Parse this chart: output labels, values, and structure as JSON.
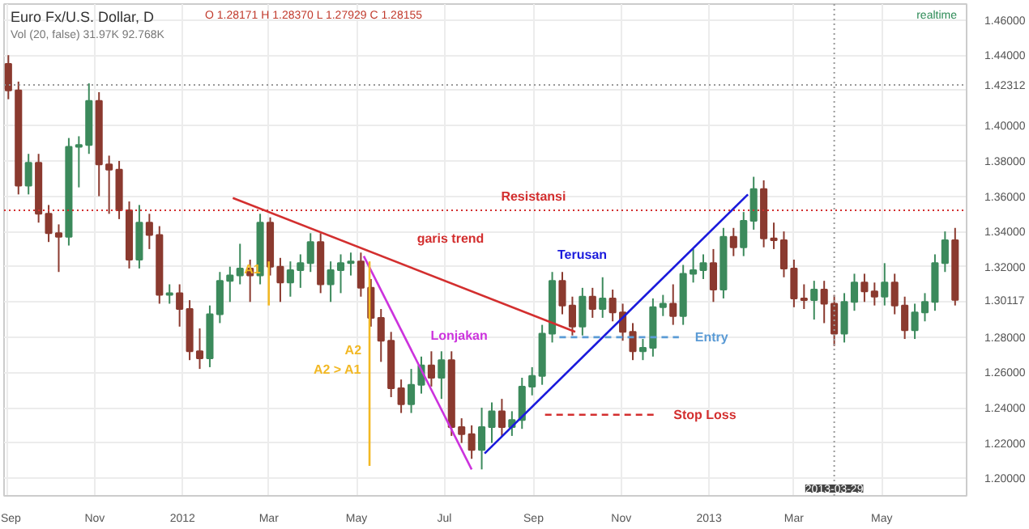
{
  "chart_data": {
    "type": "candlestick",
    "title": "Euro Fx/U.S. Dollar, D",
    "x": [
      "2011-09-02",
      "2011-09-09",
      "2011-09-16",
      "2011-09-23",
      "2011-09-30",
      "2011-10-07",
      "2011-10-14",
      "2011-10-21",
      "2011-10-28",
      "2011-11-04",
      "2011-11-11",
      "2011-11-18",
      "2011-11-25",
      "2011-12-02",
      "2011-12-09",
      "2011-12-16",
      "2011-12-23",
      "2011-12-30",
      "2012-01-06",
      "2012-01-13",
      "2012-01-20",
      "2012-01-27",
      "2012-02-03",
      "2012-02-10",
      "2012-02-17",
      "2012-02-24",
      "2012-03-02",
      "2012-03-09",
      "2012-03-16",
      "2012-03-23",
      "2012-03-30",
      "2012-04-06",
      "2012-04-13",
      "2012-04-20",
      "2012-04-27",
      "2012-05-04",
      "2012-05-11",
      "2012-05-18",
      "2012-05-25",
      "2012-06-01",
      "2012-06-08",
      "2012-06-15",
      "2012-06-22",
      "2012-06-29",
      "2012-07-06",
      "2012-07-13",
      "2012-07-20",
      "2012-07-27",
      "2012-08-03",
      "2012-08-10",
      "2012-08-17",
      "2012-08-24",
      "2012-08-31",
      "2012-09-07",
      "2012-09-14",
      "2012-09-21",
      "2012-09-28",
      "2012-10-05",
      "2012-10-12",
      "2012-10-19",
      "2012-10-26",
      "2012-11-02",
      "2012-11-09",
      "2012-11-16",
      "2012-11-23",
      "2012-11-30",
      "2012-12-07",
      "2012-12-14",
      "2012-12-21",
      "2012-12-28",
      "2013-01-04",
      "2013-01-11",
      "2013-01-18",
      "2013-01-25",
      "2013-02-01",
      "2013-02-08",
      "2013-02-15",
      "2013-02-22",
      "2013-03-01",
      "2013-03-08",
      "2013-03-15",
      "2013-03-22",
      "2013-03-29",
      "2013-04-05",
      "2013-04-12",
      "2013-04-19",
      "2013-04-26",
      "2013-05-03",
      "2013-05-10",
      "2013-05-17",
      "2013-05-24",
      "2013-05-31",
      "2013-06-07",
      "2013-06-14",
      "2013-06-21"
    ],
    "ohlc": [
      [
        1.435,
        1.44,
        1.415,
        1.42
      ],
      [
        1.42,
        1.425,
        1.361,
        1.366
      ],
      [
        1.366,
        1.384,
        1.361,
        1.379
      ],
      [
        1.379,
        1.384,
        1.345,
        1.35
      ],
      [
        1.35,
        1.355,
        1.334,
        1.339
      ],
      [
        1.339,
        1.344,
        1.317,
        1.337
      ],
      [
        1.337,
        1.393,
        1.332,
        1.388
      ],
      [
        1.388,
        1.394,
        1.365,
        1.389
      ],
      [
        1.389,
        1.424,
        1.384,
        1.414
      ],
      [
        1.414,
        1.419,
        1.36,
        1.378
      ],
      [
        1.378,
        1.383,
        1.35,
        1.375
      ],
      [
        1.375,
        1.38,
        1.347,
        1.352
      ],
      [
        1.352,
        1.357,
        1.319,
        1.324
      ],
      [
        1.324,
        1.355,
        1.319,
        1.345
      ],
      [
        1.345,
        1.35,
        1.33,
        1.338
      ],
      [
        1.338,
        1.343,
        1.299,
        1.304
      ],
      [
        1.304,
        1.31,
        1.299,
        1.305
      ],
      [
        1.305,
        1.31,
        1.286,
        1.296
      ],
      [
        1.296,
        1.301,
        1.267,
        1.272
      ],
      [
        1.272,
        1.285,
        1.262,
        1.268
      ],
      [
        1.268,
        1.298,
        1.263,
        1.293
      ],
      [
        1.293,
        1.317,
        1.288,
        1.312
      ],
      [
        1.312,
        1.32,
        1.3,
        1.315
      ],
      [
        1.315,
        1.333,
        1.31,
        1.319
      ],
      [
        1.319,
        1.324,
        1.3,
        1.315
      ],
      [
        1.315,
        1.35,
        1.31,
        1.345
      ],
      [
        1.345,
        1.348,
        1.315,
        1.32
      ],
      [
        1.32,
        1.325,
        1.3,
        1.311
      ],
      [
        1.311,
        1.323,
        1.303,
        1.318
      ],
      [
        1.318,
        1.327,
        1.308,
        1.322
      ],
      [
        1.322,
        1.339,
        1.317,
        1.334
      ],
      [
        1.334,
        1.339,
        1.305,
        1.31
      ],
      [
        1.31,
        1.323,
        1.3,
        1.318
      ],
      [
        1.318,
        1.327,
        1.305,
        1.322
      ],
      [
        1.322,
        1.328,
        1.315,
        1.323
      ],
      [
        1.323,
        1.328,
        1.303,
        1.308
      ],
      [
        1.308,
        1.313,
        1.286,
        1.291
      ],
      [
        1.291,
        1.296,
        1.266,
        1.278
      ],
      [
        1.278,
        1.283,
        1.246,
        1.251
      ],
      [
        1.251,
        1.256,
        1.237,
        1.242
      ],
      [
        1.242,
        1.262,
        1.237,
        1.253
      ],
      [
        1.253,
        1.269,
        1.248,
        1.264
      ],
      [
        1.264,
        1.272,
        1.252,
        1.257
      ],
      [
        1.257,
        1.272,
        1.245,
        1.267
      ],
      [
        1.267,
        1.272,
        1.224,
        1.229
      ],
      [
        1.229,
        1.234,
        1.22,
        1.225
      ],
      [
        1.225,
        1.23,
        1.211,
        1.216
      ],
      [
        1.216,
        1.24,
        1.205,
        1.229
      ],
      [
        1.229,
        1.243,
        1.22,
        1.238
      ],
      [
        1.238,
        1.245,
        1.224,
        1.229
      ],
      [
        1.229,
        1.238,
        1.224,
        1.233
      ],
      [
        1.233,
        1.257,
        1.228,
        1.252
      ],
      [
        1.252,
        1.263,
        1.247,
        1.258
      ],
      [
        1.258,
        1.287,
        1.253,
        1.282
      ],
      [
        1.282,
        1.317,
        1.277,
        1.312
      ],
      [
        1.312,
        1.317,
        1.293,
        1.298
      ],
      [
        1.298,
        1.303,
        1.281,
        1.286
      ],
      [
        1.286,
        1.308,
        1.281,
        1.303
      ],
      [
        1.303,
        1.308,
        1.291,
        1.296
      ],
      [
        1.296,
        1.314,
        1.291,
        1.302
      ],
      [
        1.302,
        1.307,
        1.289,
        1.294
      ],
      [
        1.294,
        1.299,
        1.278,
        1.283
      ],
      [
        1.283,
        1.288,
        1.267,
        1.272
      ],
      [
        1.272,
        1.279,
        1.267,
        1.274
      ],
      [
        1.274,
        1.302,
        1.269,
        1.297
      ],
      [
        1.297,
        1.304,
        1.292,
        1.299
      ],
      [
        1.299,
        1.31,
        1.287,
        1.292
      ],
      [
        1.292,
        1.321,
        1.287,
        1.316
      ],
      [
        1.316,
        1.33,
        1.311,
        1.318
      ],
      [
        1.318,
        1.327,
        1.313,
        1.322
      ],
      [
        1.322,
        1.33,
        1.3,
        1.307
      ],
      [
        1.307,
        1.342,
        1.302,
        1.337
      ],
      [
        1.337,
        1.342,
        1.326,
        1.331
      ],
      [
        1.331,
        1.351,
        1.326,
        1.346
      ],
      [
        1.346,
        1.371,
        1.341,
        1.364
      ],
      [
        1.364,
        1.369,
        1.331,
        1.336
      ],
      [
        1.336,
        1.345,
        1.33,
        1.335
      ],
      [
        1.335,
        1.34,
        1.314,
        1.319
      ],
      [
        1.319,
        1.324,
        1.297,
        1.302
      ],
      [
        1.302,
        1.31,
        1.296,
        1.301
      ],
      [
        1.301,
        1.312,
        1.29,
        1.307
      ],
      [
        1.307,
        1.312,
        1.288,
        1.299
      ],
      [
        1.299,
        1.304,
        1.275,
        1.282
      ],
      [
        1.282,
        1.305,
        1.277,
        1.3
      ],
      [
        1.3,
        1.316,
        1.295,
        1.311
      ],
      [
        1.311,
        1.316,
        1.3,
        1.306
      ],
      [
        1.306,
        1.311,
        1.298,
        1.303
      ],
      [
        1.303,
        1.322,
        1.298,
        1.311
      ],
      [
        1.311,
        1.316,
        1.293,
        1.298
      ],
      [
        1.298,
        1.303,
        1.279,
        1.284
      ],
      [
        1.284,
        1.299,
        1.279,
        1.294
      ],
      [
        1.294,
        1.305,
        1.289,
        1.3
      ],
      [
        1.3,
        1.327,
        1.295,
        1.322
      ],
      [
        1.322,
        1.34,
        1.317,
        1.335
      ],
      [
        1.335,
        1.342,
        1.298,
        1.30117
      ]
    ],
    "colors": [
      "#8b3a2f",
      "#8b3a2f",
      "#3c8a5c",
      "#8b3a2f",
      "#8b3a2f",
      "#8b3a2f",
      "#3c8a5c",
      "#3c8a5c",
      "#3c8a5c",
      "#8b3a2f",
      "#8b3a2f",
      "#8b3a2f",
      "#8b3a2f",
      "#3c8a5c",
      "#8b3a2f",
      "#8b3a2f",
      "#3c8a5c",
      "#8b3a2f",
      "#8b3a2f",
      "#8b3a2f",
      "#3c8a5c",
      "#3c8a5c",
      "#3c8a5c",
      "#3c8a5c",
      "#8b3a2f",
      "#3c8a5c",
      "#8b3a2f",
      "#8b3a2f",
      "#3c8a5c",
      "#3c8a5c",
      "#3c8a5c",
      "#8b3a2f",
      "#3c8a5c",
      "#3c8a5c",
      "#3c8a5c",
      "#8b3a2f",
      "#8b3a2f",
      "#8b3a2f",
      "#8b3a2f",
      "#8b3a2f",
      "#3c8a5c",
      "#3c8a5c",
      "#8b3a2f",
      "#3c8a5c",
      "#8b3a2f",
      "#8b3a2f",
      "#8b3a2f",
      "#3c8a5c",
      "#3c8a5c",
      "#8b3a2f",
      "#3c8a5c",
      "#3c8a5c",
      "#3c8a5c",
      "#3c8a5c",
      "#3c8a5c",
      "#8b3a2f",
      "#8b3a2f",
      "#3c8a5c",
      "#8b3a2f",
      "#3c8a5c",
      "#8b3a2f",
      "#8b3a2f",
      "#8b3a2f",
      "#3c8a5c",
      "#3c8a5c",
      "#3c8a5c",
      "#8b3a2f",
      "#3c8a5c",
      "#3c8a5c",
      "#3c8a5c",
      "#8b3a2f",
      "#3c8a5c",
      "#8b3a2f",
      "#3c8a5c",
      "#3c8a5c",
      "#8b3a2f",
      "#8b3a2f",
      "#8b3a2f",
      "#8b3a2f",
      "#8b3a2f",
      "#3c8a5c",
      "#8b3a2f",
      "#8b3a2f",
      "#3c8a5c",
      "#3c8a5c",
      "#8b3a2f",
      "#8b3a2f",
      "#3c8a5c",
      "#8b3a2f",
      "#8b3a2f",
      "#3c8a5c",
      "#3c8a5c",
      "#3c8a5c",
      "#3c8a5c",
      "#8b3a2f"
    ],
    "series": [
      {
        "type": "line",
        "name": "garis trend",
        "color": "#d32f2f",
        "x": [
          "2012-02-05",
          "2012-09-30"
        ],
        "values": [
          1.359,
          1.283
        ]
      },
      {
        "type": "line",
        "name": "Terusan",
        "color": "#1a1adc",
        "x": [
          "2012-07-29",
          "2013-01-28"
        ],
        "values": [
          1.214,
          1.361
        ]
      },
      {
        "type": "line",
        "name": "Lonjakan",
        "color": "#cc33dd",
        "x": [
          "2012-05-06",
          "2012-07-20"
        ],
        "values": [
          1.326,
          1.205
        ]
      },
      {
        "type": "line",
        "name": "A1",
        "color": "#f2b824",
        "x": [
          "2012-03-01",
          "2012-03-01"
        ],
        "values": [
          1.323,
          1.298
        ]
      },
      {
        "type": "line",
        "name": "A2",
        "color": "#f2b824",
        "x": [
          "2012-05-10",
          "2012-05-10"
        ],
        "values": [
          1.323,
          1.207
        ]
      },
      {
        "type": "line",
        "name": "Entry",
        "color": "#5b9bd5",
        "line_style": "dashed",
        "x": [
          "2012-09-19",
          "2012-12-11"
        ],
        "values": [
          1.28,
          1.28
        ]
      },
      {
        "type": "line",
        "name": "Stop Loss",
        "color": "#d32f2f",
        "line_style": "dashed",
        "x": [
          "2012-09-09",
          "2012-11-26"
        ],
        "values": [
          1.236,
          1.236
        ]
      }
    ],
    "annotations": [
      "O 1.28171 H 1.28370 L 1.27929 C 1.28155",
      "Vol (20, false) 31.97K 92.768K",
      "realtime",
      "A2 > A1"
    ],
    "ref_lines": [
      {
        "axis": "y",
        "value": 1.352,
        "label": "Resistansi",
        "color": "#d32f2f",
        "line_style": "dotted"
      },
      {
        "axis": "y",
        "value": 1.42312,
        "label": "1.42312",
        "color": "#999999",
        "line_style": "dotted"
      },
      {
        "axis": "x",
        "value": "2013-03-29",
        "label": "2013-03-29",
        "color": "#999999",
        "line_style": "dotted"
      }
    ],
    "xlim": [
      "2011-08-30",
      "2013-06-29"
    ],
    "xticks": [
      {
        "value": "2011-09-01",
        "label": "Sep"
      },
      {
        "value": "2011-11-01",
        "label": "Nov"
      },
      {
        "value": "2012-01-01",
        "label": "2012"
      },
      {
        "value": "2012-03-01",
        "label": "Mar"
      },
      {
        "value": "2012-05-01",
        "label": "May"
      },
      {
        "value": "2012-07-01",
        "label": "Jul"
      },
      {
        "value": "2012-09-01",
        "label": "Sep"
      },
      {
        "value": "2012-11-01",
        "label": "Nov"
      },
      {
        "value": "2013-01-01",
        "label": "2013"
      },
      {
        "value": "2013-03-01",
        "label": "Mar"
      },
      {
        "value": "2013-05-01",
        "label": "May"
      }
    ],
    "ylim": [
      1.19,
      1.469
    ],
    "yticks": [
      {
        "value": 1.2,
        "label": "1.20000"
      },
      {
        "value": 1.22,
        "label": "1.22000"
      },
      {
        "value": 1.24,
        "label": "1.24000"
      },
      {
        "value": 1.26,
        "label": "1.26000"
      },
      {
        "value": 1.28,
        "label": "1.28000"
      },
      {
        "value": 1.3,
        "label": null
      },
      {
        "value": 1.30117,
        "label": "1.30117"
      },
      {
        "value": 1.32,
        "label": "1.32000"
      },
      {
        "value": 1.34,
        "label": "1.34000"
      },
      {
        "value": 1.36,
        "label": "1.36000"
      },
      {
        "value": 1.38,
        "label": "1.38000"
      },
      {
        "value": 1.4,
        "label": "1.40000"
      },
      {
        "value": 1.42,
        "label": null
      },
      {
        "value": 1.44,
        "label": "1.44000"
      },
      {
        "value": 1.46,
        "label": "1.46000"
      }
    ],
    "grid": true
  }
}
